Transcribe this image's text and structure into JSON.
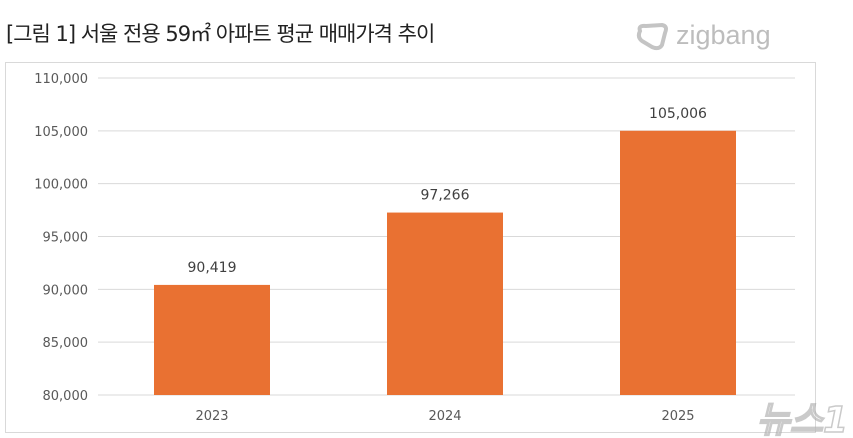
{
  "title": "[그림 1] 서울 전용 59㎡ 아파트 평균 매매가격 추이",
  "logo": {
    "text": "zigbang",
    "icon": "zigbang-logo-icon"
  },
  "watermark": "뉴스1",
  "chart_data": {
    "type": "bar",
    "categories": [
      "2023",
      "2024",
      "2025"
    ],
    "values": [
      90419,
      97266,
      105006
    ],
    "data_labels": [
      "90,419",
      "97,266",
      "105,006"
    ],
    "ylim": [
      80000,
      110000
    ],
    "yticks": [
      "80,000",
      "85,000",
      "90,000",
      "95,000",
      "100,000",
      "105,000",
      "110,000"
    ],
    "grid": true,
    "bar_color": "#E97132"
  }
}
